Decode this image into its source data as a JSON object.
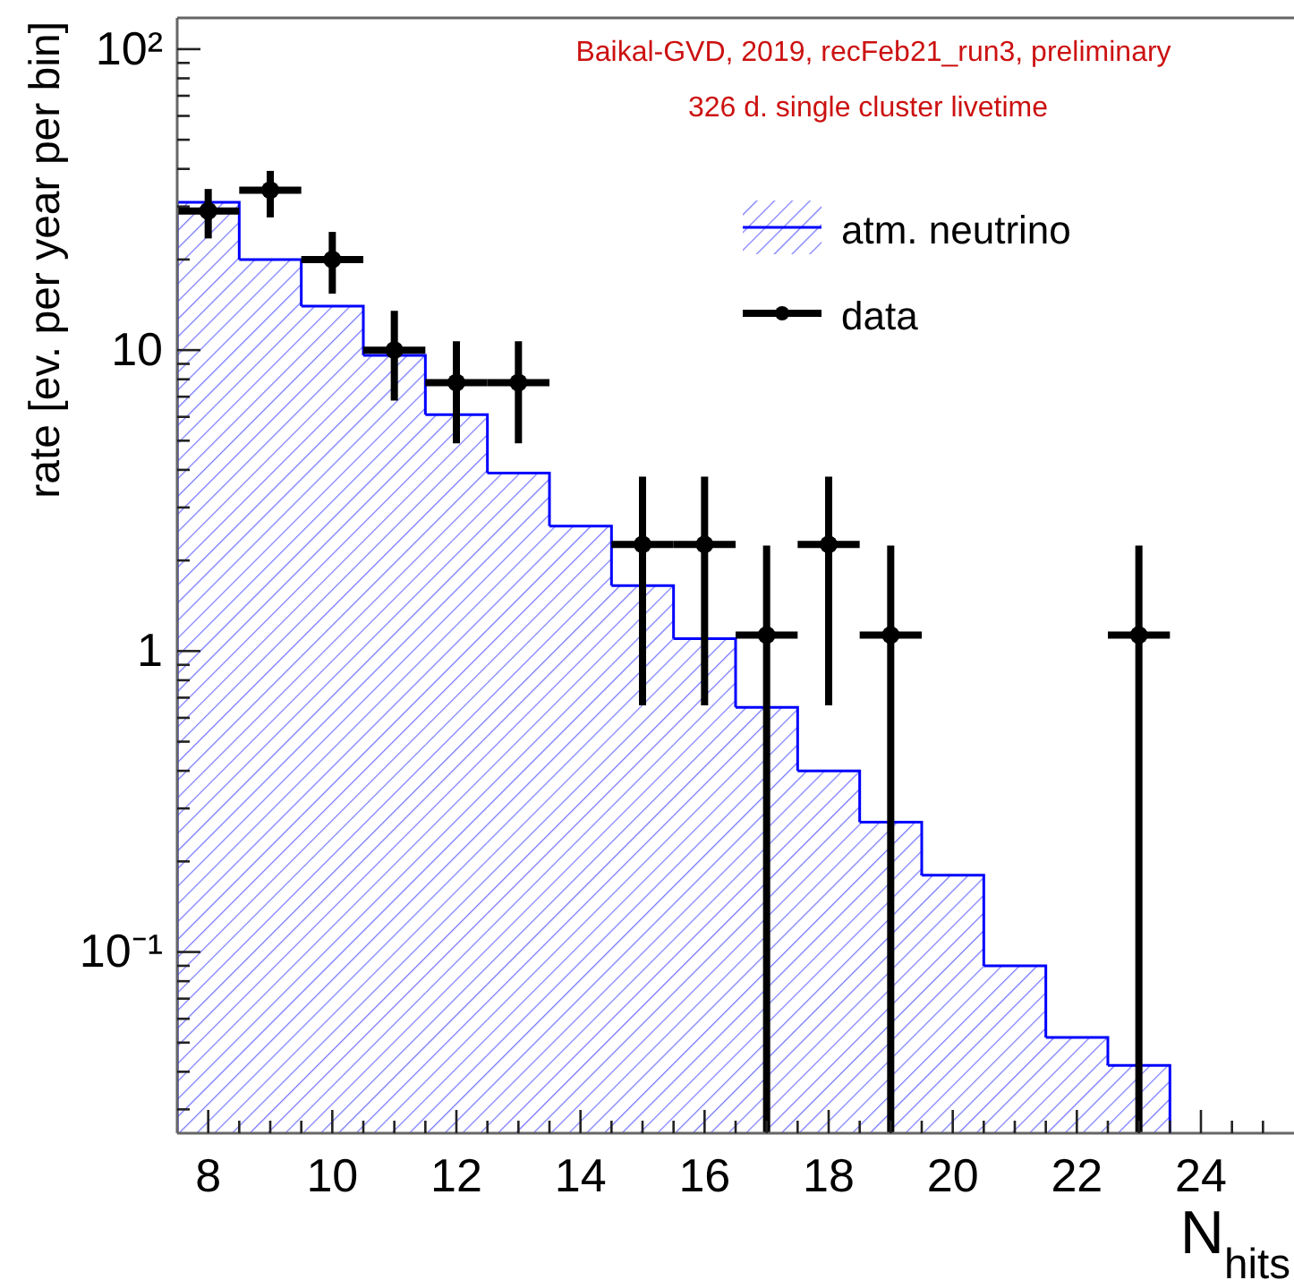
{
  "chart_data": {
    "type": "histogram",
    "xlabel": "N$_{hits}$",
    "ylabel": "rate [ev. per year per bin]",
    "annotations": [
      "Baikal-GVD, 2019, recFeb21_run3, preliminary",
      "326 d. single cluster livetime"
    ],
    "log": "y",
    "legend": "top right",
    "grid": false,
    "marker": "circle",
    "xlim": [
      7.5,
      25.5
    ],
    "xticks": [
      8,
      {
        "value": 8.5,
        "label": null
      },
      {
        "value": 9,
        "label": null
      },
      {
        "value": 9.5,
        "label": null
      },
      10,
      {
        "value": 10.5,
        "label": null
      },
      {
        "value": 11,
        "label": null
      },
      {
        "value": 11.5,
        "label": null
      },
      12,
      {
        "value": 12.5,
        "label": null
      },
      {
        "value": 13,
        "label": null
      },
      {
        "value": 13.5,
        "label": null
      },
      14,
      {
        "value": 14.5,
        "label": null
      },
      {
        "value": 15,
        "label": null
      },
      {
        "value": 15.5,
        "label": null
      },
      16,
      {
        "value": 16.5,
        "label": null
      },
      {
        "value": 17,
        "label": null
      },
      {
        "value": 17.5,
        "label": null
      },
      18,
      {
        "value": 18.5,
        "label": null
      },
      {
        "value": 19,
        "label": null
      },
      {
        "value": 19.5,
        "label": null
      },
      20,
      {
        "value": 20.5,
        "label": null
      },
      {
        "value": 21,
        "label": null
      },
      {
        "value": 21.5,
        "label": null
      },
      22,
      {
        "value": 22.5,
        "label": null
      },
      {
        "value": 23,
        "label": null
      },
      {
        "value": 23.5,
        "label": null
      },
      24,
      {
        "value": 24.5,
        "label": null
      },
      {
        "value": 25,
        "label": null
      }
    ],
    "ylim": [
      0.025,
      127
    ],
    "yticks": [
      {
        "value": 0.03,
        "label": null
      },
      {
        "value": 0.04,
        "label": null
      },
      {
        "value": 0.05,
        "label": null
      },
      {
        "value": 0.06,
        "label": null
      },
      {
        "value": 0.07,
        "label": null
      },
      {
        "value": 0.08,
        "label": null
      },
      {
        "value": 0.09,
        "label": null
      },
      {
        "value": 0.1,
        "label": "10⁻¹"
      },
      {
        "value": 0.2,
        "label": null
      },
      {
        "value": 0.3,
        "label": null
      },
      {
        "value": 0.4,
        "label": null
      },
      {
        "value": 0.5,
        "label": null
      },
      {
        "value": 0.6,
        "label": null
      },
      {
        "value": 0.7,
        "label": null
      },
      {
        "value": 0.8,
        "label": null
      },
      {
        "value": 0.9,
        "label": null
      },
      1,
      {
        "value": 2,
        "label": null
      },
      {
        "value": 3,
        "label": null
      },
      {
        "value": 4,
        "label": null
      },
      {
        "value": 5,
        "label": null
      },
      {
        "value": 6,
        "label": null
      },
      {
        "value": 7,
        "label": null
      },
      {
        "value": 8,
        "label": null
      },
      {
        "value": 9,
        "label": null
      },
      10,
      {
        "value": 20,
        "label": null
      },
      {
        "value": 30,
        "label": null
      },
      {
        "value": 40,
        "label": null
      },
      {
        "value": 50,
        "label": null
      },
      {
        "value": 60,
        "label": null
      },
      {
        "value": 70,
        "label": null
      },
      {
        "value": 80,
        "label": null
      },
      {
        "value": 90,
        "label": null
      },
      {
        "value": 100,
        "label": "10²"
      }
    ],
    "series": [
      {
        "name": "atm. neutrino",
        "color": "#0000ff",
        "bins": [
          7.5,
          8.5,
          9.5,
          10.5,
          11.5,
          12.5,
          13.5,
          14.5,
          15.5,
          16.5,
          17.5,
          18.5,
          19.5,
          20.5,
          21.5,
          22.5,
          23.5
        ],
        "values": [
          31,
          20,
          14,
          9.6,
          6.1,
          3.9,
          2.6,
          1.65,
          1.1,
          0.65,
          0.4,
          0.27,
          0.18,
          0.09,
          0.052,
          0.042
        ]
      },
      {
        "type": "scatter",
        "name": "data",
        "color": "#000000",
        "x": [
          8,
          9,
          10,
          11,
          12,
          13,
          14,
          15,
          16,
          17,
          18,
          19,
          20,
          21,
          22,
          23
        ],
        "values": [
          29,
          34,
          20,
          10,
          7.8,
          7.8,
          null,
          2.26,
          2.26,
          1.13,
          2.26,
          1.13,
          null,
          null,
          null,
          1.13
        ],
        "errors": [
          [
            23.5,
            34.3
          ],
          [
            27.6,
            39.4
          ],
          [
            15.4,
            24.7
          ],
          [
            6.8,
            13.5
          ],
          [
            4.9,
            10.7
          ],
          [
            4.9,
            10.7
          ],
          null,
          [
            0.66,
            3.8
          ],
          [
            0.66,
            3.8
          ],
          [
            0.025,
            2.24
          ],
          [
            0.66,
            3.8
          ],
          [
            0.025,
            2.24
          ],
          null,
          null,
          null,
          [
            0.025,
            2.24
          ]
        ],
        "xerrors": [
          0.5,
          0.5,
          0.5,
          0.5,
          0.5,
          0.5,
          null,
          0.5,
          0.5,
          0.5,
          0.5,
          0.5,
          null,
          null,
          null,
          0.5
        ]
      }
    ]
  }
}
